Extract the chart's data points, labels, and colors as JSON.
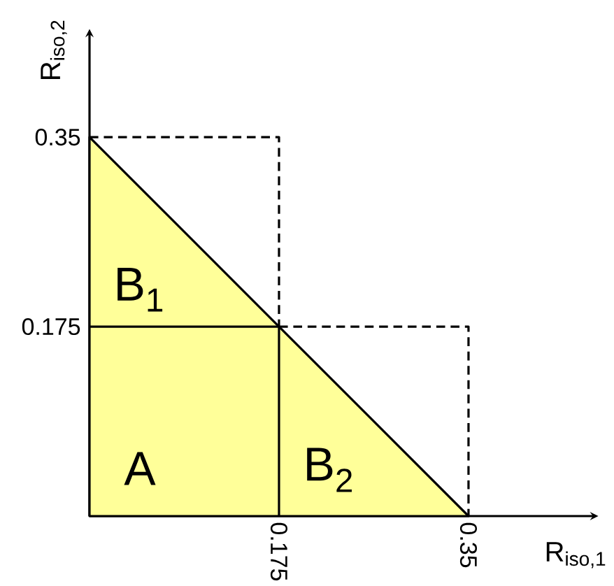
{
  "chart_data": {
    "type": "area",
    "xlabel": "R$_{iso,1}$",
    "ylabel": "R$_{iso,2}$",
    "xlim": [
      0,
      0.465
    ],
    "ylim": [
      0,
      0.445
    ],
    "xticks": [
      0.175,
      0.35
    ],
    "yticks": [
      0.175,
      0.35
    ],
    "series": [
      {
        "color": "#ffff99",
        "x": [
          0,
          0.175,
          0.35
        ],
        "values": [
          0.35,
          0.175,
          0
        ]
      },
      {
        "type": "line",
        "color": "#000000",
        "line_style": "dashed",
        "x": [
          0,
          0.175,
          0.175
        ],
        "values": [
          0.35,
          0.35,
          0.175
        ]
      },
      {
        "type": "line",
        "color": "#000000",
        "line_style": "dashed",
        "x": [
          0.175,
          0.35,
          0.35
        ],
        "values": [
          0.175,
          0.175,
          0
        ]
      },
      {
        "type": "line",
        "color": "#000000",
        "line_style": "solid",
        "x": [
          0,
          0.175,
          0.175
        ],
        "values": [
          0.175,
          0.175,
          0
        ]
      }
    ],
    "annotations": [
      "A",
      "B$_{1}$",
      "B$_{2}$"
    ]
  }
}
